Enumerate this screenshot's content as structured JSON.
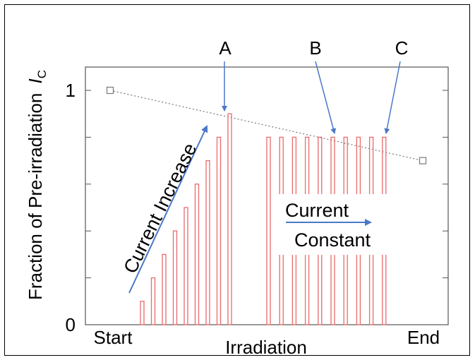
{
  "chart_data": {
    "type": "bar",
    "ylabel": "Fraction of Pre-irradiation",
    "ylabel_symbol": "I",
    "ylabel_subscript": "C",
    "xlabel": "Irradiation",
    "x_tick_labels": [
      "Start",
      "End"
    ],
    "y_tick_labels": [
      "0",
      "1"
    ],
    "ylim": [
      0,
      1
    ],
    "grid": false,
    "bars": {
      "increase": [
        0.1,
        0.2,
        0.3,
        0.4,
        0.5,
        0.6,
        0.7,
        0.8,
        0.9
      ],
      "constant": [
        0.8,
        0.8,
        0.8,
        0.8,
        0.8,
        0.8,
        0.8,
        0.8,
        0.8,
        0.8
      ]
    },
    "reference_line": {
      "style": "dotted",
      "marker": "square",
      "start_value": 1.0,
      "end_value": 0.7
    },
    "annotations": {
      "markers": [
        "A",
        "B",
        "C"
      ],
      "increase_text": "Current Increase",
      "constant_line1": "Current",
      "constant_line2": "Constant"
    },
    "colors": {
      "bar_stroke": "#e96a6a",
      "arrow": "#4a78c8",
      "axis": "#555555",
      "reference": "#777777"
    }
  }
}
